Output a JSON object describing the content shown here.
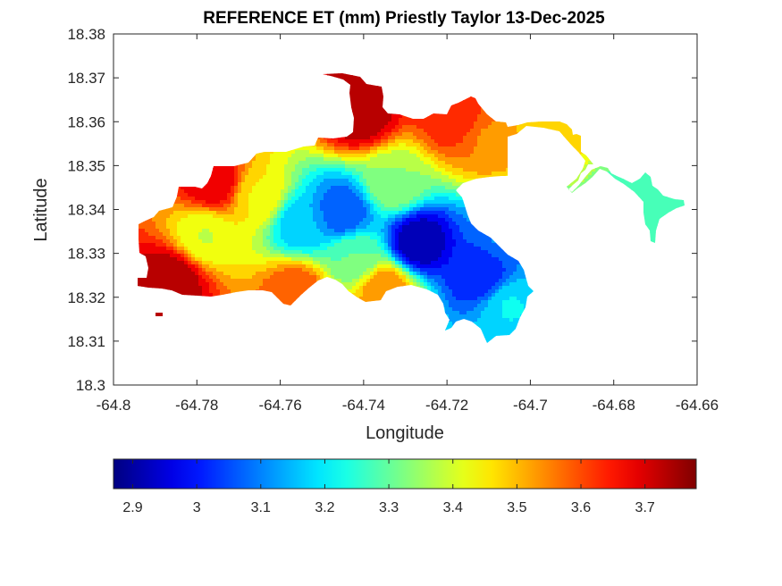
{
  "chart_data": {
    "type": "heatmap",
    "title": "REFERENCE ET (mm) Priestly Taylor 13-Dec-2025",
    "xlabel": "Longitude",
    "ylabel": "Latitude",
    "xlim": [
      -64.8,
      -64.66
    ],
    "ylim": [
      18.3,
      18.38
    ],
    "x_ticks": [
      -64.8,
      -64.78,
      -64.76,
      -64.74,
      -64.72,
      -64.7,
      -64.68,
      -64.66
    ],
    "x_tick_labels": [
      "-64.8",
      "-64.78",
      "-64.76",
      "-64.74",
      "-64.72",
      "-64.7",
      "-64.68",
      "-64.66"
    ],
    "y_ticks": [
      18.3,
      18.31,
      18.32,
      18.33,
      18.34,
      18.35,
      18.36,
      18.37,
      18.38
    ],
    "y_tick_labels": [
      "18.3",
      "18.31",
      "18.32",
      "18.33",
      "18.34",
      "18.35",
      "18.36",
      "18.37",
      "18.38"
    ],
    "grid": false,
    "colormap": "jet",
    "colorbar": {
      "orientation": "horizontal",
      "position": "bottom",
      "range": [
        2.87,
        3.78
      ],
      "ticks": [
        2.9,
        3,
        3.1,
        3.2,
        3.3,
        3.4,
        3.5,
        3.6,
        3.7
      ],
      "tick_labels": [
        "2.9",
        "3",
        "3.1",
        "3.2",
        "3.3",
        "3.4",
        "3.5",
        "3.6",
        "3.7"
      ]
    },
    "field_features": [
      {
        "lon": -64.727,
        "lat": 18.3325,
        "value": 2.9
      },
      {
        "lon": -64.745,
        "lat": 18.3395,
        "value": 3.05
      },
      {
        "lon": -64.712,
        "lat": 18.325,
        "value": 3.0
      },
      {
        "lon": -64.705,
        "lat": 18.318,
        "value": 3.2
      },
      {
        "lon": -64.755,
        "lat": 18.337,
        "value": 3.15
      },
      {
        "lon": -64.742,
        "lat": 18.329,
        "value": 3.3
      },
      {
        "lon": -64.733,
        "lat": 18.346,
        "value": 3.35
      },
      {
        "lon": -64.778,
        "lat": 18.334,
        "value": 3.4
      },
      {
        "lon": -64.765,
        "lat": 18.343,
        "value": 3.45
      },
      {
        "lon": -64.786,
        "lat": 18.324,
        "value": 3.75
      },
      {
        "lon": -64.776,
        "lat": 18.346,
        "value": 3.7
      },
      {
        "lon": -64.741,
        "lat": 18.362,
        "value": 3.75
      },
      {
        "lon": -64.718,
        "lat": 18.361,
        "value": 3.65
      },
      {
        "lon": -64.71,
        "lat": 18.356,
        "value": 3.55
      },
      {
        "lon": -64.756,
        "lat": 18.321,
        "value": 3.6
      },
      {
        "lon": -64.735,
        "lat": 18.322,
        "value": 3.55
      },
      {
        "lon": -64.7,
        "lat": 18.358,
        "value": 3.5
      },
      {
        "lon": -64.67,
        "lat": 18.34,
        "value": 3.25
      },
      {
        "lon": -64.706,
        "lat": 18.3345,
        "value": 3.1
      }
    ],
    "colors": {
      "axes_background": "#ffffff",
      "axis_line": "#262626",
      "text": "#262626",
      "title": "#000000"
    }
  }
}
